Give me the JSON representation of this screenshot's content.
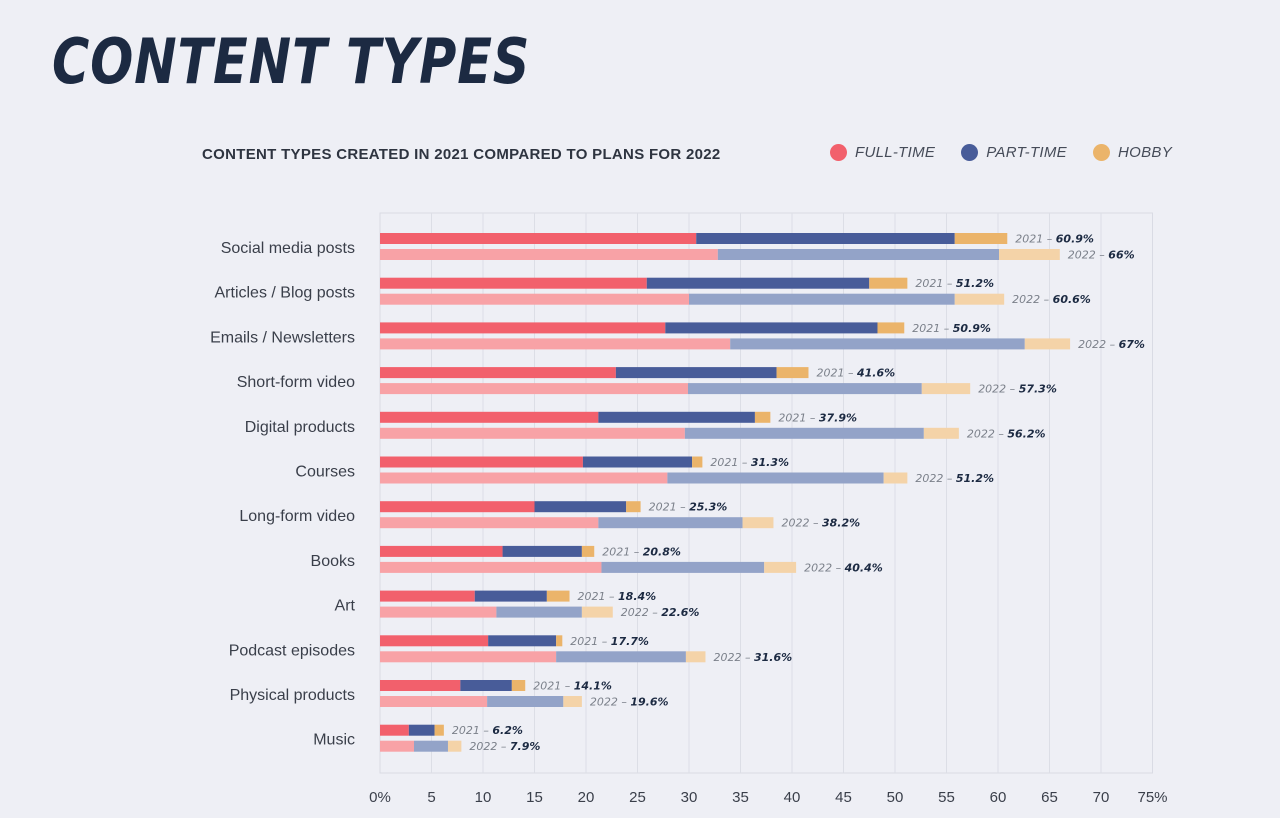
{
  "title": "CONTENT TYPES",
  "chart_data": {
    "type": "bar",
    "orientation": "horizontal",
    "stacked": true,
    "title": "CONTENT TYPES CREATED IN 2021 COMPARED TO PLANS FOR 2022",
    "xlim": [
      0,
      75
    ],
    "xticks": [
      0,
      5,
      10,
      15,
      20,
      25,
      30,
      35,
      40,
      45,
      50,
      55,
      60,
      65,
      70,
      75
    ],
    "xtick_labels": [
      "0%",
      "5",
      "10",
      "15",
      "20",
      "25",
      "30",
      "35",
      "40",
      "45",
      "50",
      "55",
      "60",
      "65",
      "70",
      "75%"
    ],
    "legend": [
      {
        "name": "FULL-TIME",
        "color": "#f2606c"
      },
      {
        "name": "PART-TIME",
        "color": "#485c99"
      },
      {
        "name": "HOBBY",
        "color": "#ebb46a"
      }
    ],
    "colors_2022": {
      "full_time": "#f8a2a6",
      "part_time": "#93a3c8",
      "hobby": "#f4d3a8"
    },
    "categories": [
      {
        "label": "Social media posts",
        "y2021": {
          "full_time": 30.7,
          "part_time": 25.1,
          "hobby": 5.1,
          "label": "60.9%"
        },
        "y2022": {
          "full_time": 32.8,
          "part_time": 27.3,
          "hobby": 5.9,
          "label": "66%"
        }
      },
      {
        "label": "Articles / Blog posts",
        "y2021": {
          "full_time": 25.9,
          "part_time": 21.6,
          "hobby": 3.7,
          "label": "51.2%"
        },
        "y2022": {
          "full_time": 30.0,
          "part_time": 25.8,
          "hobby": 4.8,
          "label": "60.6%"
        }
      },
      {
        "label": "Emails / Newsletters",
        "y2021": {
          "full_time": 27.7,
          "part_time": 20.6,
          "hobby": 2.6,
          "label": "50.9%"
        },
        "y2022": {
          "full_time": 34.0,
          "part_time": 28.6,
          "hobby": 4.4,
          "label": "67%"
        }
      },
      {
        "label": "Short-form video",
        "y2021": {
          "full_time": 22.9,
          "part_time": 15.6,
          "hobby": 3.1,
          "label": "41.6%"
        },
        "y2022": {
          "full_time": 29.9,
          "part_time": 22.7,
          "hobby": 4.7,
          "label": "57.3%"
        }
      },
      {
        "label": "Digital products",
        "y2021": {
          "full_time": 21.2,
          "part_time": 15.2,
          "hobby": 1.5,
          "label": "37.9%"
        },
        "y2022": {
          "full_time": 29.6,
          "part_time": 23.2,
          "hobby": 3.4,
          "label": "56.2%"
        }
      },
      {
        "label": "Courses",
        "y2021": {
          "full_time": 19.7,
          "part_time": 10.6,
          "hobby": 1.0,
          "label": "31.3%"
        },
        "y2022": {
          "full_time": 27.9,
          "part_time": 21.0,
          "hobby": 2.3,
          "label": "51.2%"
        }
      },
      {
        "label": "Long-form video",
        "y2021": {
          "full_time": 15.0,
          "part_time": 8.9,
          "hobby": 1.4,
          "label": "25.3%"
        },
        "y2022": {
          "full_time": 21.2,
          "part_time": 14.0,
          "hobby": 3.0,
          "label": "38.2%"
        }
      },
      {
        "label": "Books",
        "y2021": {
          "full_time": 11.9,
          "part_time": 7.7,
          "hobby": 1.2,
          "label": "20.8%"
        },
        "y2022": {
          "full_time": 21.5,
          "part_time": 15.8,
          "hobby": 3.1,
          "label": "40.4%"
        }
      },
      {
        "label": "Art",
        "y2021": {
          "full_time": 9.2,
          "part_time": 7.0,
          "hobby": 2.2,
          "label": "18.4%"
        },
        "y2022": {
          "full_time": 11.3,
          "part_time": 8.3,
          "hobby": 3.0,
          "label": "22.6%"
        }
      },
      {
        "label": "Podcast episodes",
        "y2021": {
          "full_time": 10.5,
          "part_time": 6.6,
          "hobby": 0.6,
          "label": "17.7%"
        },
        "y2022": {
          "full_time": 17.1,
          "part_time": 12.6,
          "hobby": 1.9,
          "label": "31.6%"
        }
      },
      {
        "label": "Physical products",
        "y2021": {
          "full_time": 7.8,
          "part_time": 5.0,
          "hobby": 1.3,
          "label": "14.1%"
        },
        "y2022": {
          "full_time": 10.4,
          "part_time": 7.4,
          "hobby": 1.8,
          "label": "19.6%"
        }
      },
      {
        "label": "Music",
        "y2021": {
          "full_time": 2.8,
          "part_time": 2.5,
          "hobby": 0.9,
          "label": "6.2%"
        },
        "y2022": {
          "full_time": 3.3,
          "part_time": 3.3,
          "hobby": 1.3,
          "label": "7.9%"
        }
      }
    ],
    "year_labels": {
      "y2021": "2021",
      "y2022": "2022",
      "separator": " – "
    }
  }
}
